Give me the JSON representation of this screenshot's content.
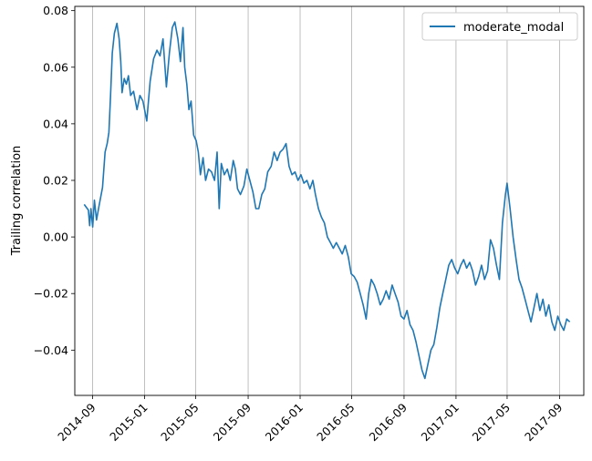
{
  "chart_data": {
    "type": "line",
    "title": "",
    "xlabel": "",
    "ylabel": "Trailing correlation",
    "x_ticks": [
      "2014-09",
      "2015-01",
      "2015-05",
      "2015-09",
      "2016-01",
      "2016-05",
      "2016-09",
      "2017-01",
      "2017-05",
      "2017-09"
    ],
    "x_range": [
      "2014-07-21",
      "2017-10-28"
    ],
    "y_ticks": [
      "0.08",
      "0.06",
      "0.04",
      "0.02",
      "0.00",
      "−0.02",
      "−0.04"
    ],
    "y_tick_values": [
      0.08,
      0.06,
      0.04,
      0.02,
      0.0,
      -0.02,
      -0.04
    ],
    "ylim": [
      -0.056,
      0.0815
    ],
    "grid": "vertical",
    "legend_position": "top-right",
    "series": [
      {
        "name": "moderate_modal",
        "color": "#1f77b4",
        "points": [
          [
            "2014-08-12",
            0.0115
          ],
          [
            "2014-08-17",
            0.0105
          ],
          [
            "2014-08-22",
            0.0095
          ],
          [
            "2014-08-25",
            0.004
          ],
          [
            "2014-08-28",
            0.01
          ],
          [
            "2014-09-01",
            0.0035
          ],
          [
            "2014-09-05",
            0.013
          ],
          [
            "2014-09-10",
            0.006
          ],
          [
            "2014-09-16",
            0.011
          ],
          [
            "2014-09-24",
            0.0175
          ],
          [
            "2014-09-30",
            0.03
          ],
          [
            "2014-10-05",
            0.033
          ],
          [
            "2014-10-09",
            0.037
          ],
          [
            "2014-10-13",
            0.05
          ],
          [
            "2014-10-17",
            0.065
          ],
          [
            "2014-10-22",
            0.072
          ],
          [
            "2014-10-28",
            0.0755
          ],
          [
            "2014-11-02",
            0.07
          ],
          [
            "2014-11-06",
            0.062
          ],
          [
            "2014-11-09",
            0.051
          ],
          [
            "2014-11-14",
            0.056
          ],
          [
            "2014-11-19",
            0.054
          ],
          [
            "2014-11-24",
            0.057
          ],
          [
            "2014-11-29",
            0.05
          ],
          [
            "2014-12-06",
            0.0515
          ],
          [
            "2014-12-14",
            0.045
          ],
          [
            "2014-12-21",
            0.05
          ],
          [
            "2014-12-28",
            0.048
          ],
          [
            "2015-01-06",
            0.041
          ],
          [
            "2015-01-14",
            0.055
          ],
          [
            "2015-01-22",
            0.063
          ],
          [
            "2015-01-30",
            0.066
          ],
          [
            "2015-02-06",
            0.064
          ],
          [
            "2015-02-13",
            0.07
          ],
          [
            "2015-02-21",
            0.053
          ],
          [
            "2015-02-28",
            0.065
          ],
          [
            "2015-03-07",
            0.074
          ],
          [
            "2015-03-13",
            0.076
          ],
          [
            "2015-03-20",
            0.07
          ],
          [
            "2015-03-26",
            0.062
          ],
          [
            "2015-04-01",
            0.074
          ],
          [
            "2015-04-05",
            0.06
          ],
          [
            "2015-04-10",
            0.054
          ],
          [
            "2015-04-15",
            0.045
          ],
          [
            "2015-04-20",
            0.048
          ],
          [
            "2015-04-26",
            0.036
          ],
          [
            "2015-05-02",
            0.034
          ],
          [
            "2015-05-07",
            0.03
          ],
          [
            "2015-05-12",
            0.022
          ],
          [
            "2015-05-18",
            0.028
          ],
          [
            "2015-05-24",
            0.02
          ],
          [
            "2015-05-31",
            0.024
          ],
          [
            "2015-06-07",
            0.023
          ],
          [
            "2015-06-14",
            0.02
          ],
          [
            "2015-06-20",
            0.03
          ],
          [
            "2015-06-25",
            0.01
          ],
          [
            "2015-06-30",
            0.026
          ],
          [
            "2015-07-07",
            0.022
          ],
          [
            "2015-07-14",
            0.024
          ],
          [
            "2015-07-21",
            0.02
          ],
          [
            "2015-07-28",
            0.027
          ],
          [
            "2015-08-02",
            0.024
          ],
          [
            "2015-08-07",
            0.017
          ],
          [
            "2015-08-14",
            0.015
          ],
          [
            "2015-08-22",
            0.018
          ],
          [
            "2015-08-29",
            0.024
          ],
          [
            "2015-09-05",
            0.02
          ],
          [
            "2015-09-12",
            0.016
          ],
          [
            "2015-09-19",
            0.01
          ],
          [
            "2015-09-26",
            0.01
          ],
          [
            "2015-10-03",
            0.015
          ],
          [
            "2015-10-10",
            0.017
          ],
          [
            "2015-10-17",
            0.023
          ],
          [
            "2015-10-25",
            0.025
          ],
          [
            "2015-11-01",
            0.03
          ],
          [
            "2015-11-08",
            0.027
          ],
          [
            "2015-11-15",
            0.03
          ],
          [
            "2015-11-22",
            0.031
          ],
          [
            "2015-11-29",
            0.033
          ],
          [
            "2015-12-06",
            0.025
          ],
          [
            "2015-12-13",
            0.022
          ],
          [
            "2015-12-20",
            0.023
          ],
          [
            "2015-12-27",
            0.02
          ],
          [
            "2016-01-03",
            0.022
          ],
          [
            "2016-01-10",
            0.019
          ],
          [
            "2016-01-17",
            0.02
          ],
          [
            "2016-01-24",
            0.017
          ],
          [
            "2016-01-31",
            0.02
          ],
          [
            "2016-02-06",
            0.015
          ],
          [
            "2016-02-13",
            0.01
          ],
          [
            "2016-02-20",
            0.007
          ],
          [
            "2016-02-27",
            0.005
          ],
          [
            "2016-03-05",
            0.0
          ],
          [
            "2016-03-12",
            -0.002
          ],
          [
            "2016-03-19",
            -0.004
          ],
          [
            "2016-03-26",
            -0.002
          ],
          [
            "2016-04-02",
            -0.004
          ],
          [
            "2016-04-09",
            -0.006
          ],
          [
            "2016-04-16",
            -0.003
          ],
          [
            "2016-04-23",
            -0.007
          ],
          [
            "2016-04-30",
            -0.013
          ],
          [
            "2016-05-07",
            -0.014
          ],
          [
            "2016-05-14",
            -0.016
          ],
          [
            "2016-05-21",
            -0.02
          ],
          [
            "2016-05-28",
            -0.024
          ],
          [
            "2016-06-04",
            -0.029
          ],
          [
            "2016-06-10",
            -0.02
          ],
          [
            "2016-06-16",
            -0.015
          ],
          [
            "2016-06-23",
            -0.017
          ],
          [
            "2016-06-30",
            -0.02
          ],
          [
            "2016-07-07",
            -0.024
          ],
          [
            "2016-07-14",
            -0.022
          ],
          [
            "2016-07-21",
            -0.019
          ],
          [
            "2016-07-28",
            -0.022
          ],
          [
            "2016-08-04",
            -0.017
          ],
          [
            "2016-08-11",
            -0.02
          ],
          [
            "2016-08-18",
            -0.023
          ],
          [
            "2016-08-25",
            -0.028
          ],
          [
            "2016-09-01",
            -0.029
          ],
          [
            "2016-09-08",
            -0.026
          ],
          [
            "2016-09-15",
            -0.031
          ],
          [
            "2016-09-22",
            -0.033
          ],
          [
            "2016-09-29",
            -0.037
          ],
          [
            "2016-10-06",
            -0.042
          ],
          [
            "2016-10-13",
            -0.047
          ],
          [
            "2016-10-20",
            -0.05
          ],
          [
            "2016-10-27",
            -0.045
          ],
          [
            "2016-11-03",
            -0.04
          ],
          [
            "2016-11-10",
            -0.038
          ],
          [
            "2016-11-17",
            -0.032
          ],
          [
            "2016-11-24",
            -0.025
          ],
          [
            "2016-12-01",
            -0.02
          ],
          [
            "2016-12-08",
            -0.015
          ],
          [
            "2016-12-15",
            -0.01
          ],
          [
            "2016-12-22",
            -0.008
          ],
          [
            "2016-12-29",
            -0.011
          ],
          [
            "2017-01-05",
            -0.013
          ],
          [
            "2017-01-12",
            -0.01
          ],
          [
            "2017-01-19",
            -0.008
          ],
          [
            "2017-01-26",
            -0.011
          ],
          [
            "2017-02-02",
            -0.009
          ],
          [
            "2017-02-09",
            -0.012
          ],
          [
            "2017-02-16",
            -0.017
          ],
          [
            "2017-02-23",
            -0.014
          ],
          [
            "2017-03-02",
            -0.01
          ],
          [
            "2017-03-09",
            -0.015
          ],
          [
            "2017-03-16",
            -0.012
          ],
          [
            "2017-03-23",
            -0.001
          ],
          [
            "2017-03-30",
            -0.004
          ],
          [
            "2017-04-06",
            -0.01
          ],
          [
            "2017-04-13",
            -0.015
          ],
          [
            "2017-04-20",
            0.005
          ],
          [
            "2017-04-27",
            0.015
          ],
          [
            "2017-05-01",
            0.019
          ],
          [
            "2017-05-08",
            0.01
          ],
          [
            "2017-05-15",
            0.0
          ],
          [
            "2017-05-22",
            -0.008
          ],
          [
            "2017-05-29",
            -0.015
          ],
          [
            "2017-06-05",
            -0.018
          ],
          [
            "2017-06-12",
            -0.022
          ],
          [
            "2017-06-19",
            -0.026
          ],
          [
            "2017-06-26",
            -0.03
          ],
          [
            "2017-07-03",
            -0.025
          ],
          [
            "2017-07-10",
            -0.02
          ],
          [
            "2017-07-17",
            -0.026
          ],
          [
            "2017-07-24",
            -0.022
          ],
          [
            "2017-07-31",
            -0.028
          ],
          [
            "2017-08-07",
            -0.024
          ],
          [
            "2017-08-14",
            -0.03
          ],
          [
            "2017-08-21",
            -0.033
          ],
          [
            "2017-08-28",
            -0.028
          ],
          [
            "2017-09-04",
            -0.031
          ],
          [
            "2017-09-11",
            -0.033
          ],
          [
            "2017-09-18",
            -0.029
          ],
          [
            "2017-09-25",
            -0.03
          ]
        ]
      }
    ]
  }
}
